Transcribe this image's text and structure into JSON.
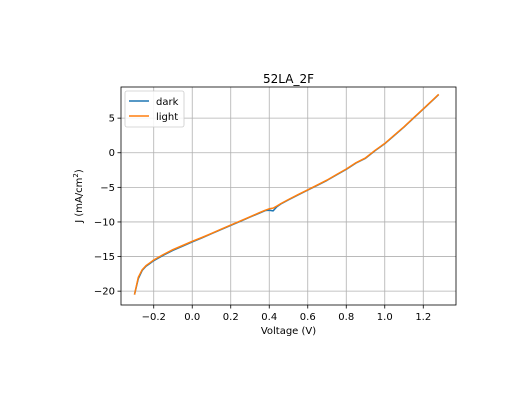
{
  "chart_data": {
    "type": "line",
    "title": "52LA_2F",
    "xlabel": "Voltage (V)",
    "ylabel_main": "J (mA/cm",
    "ylabel_sup": "2",
    "ylabel_tail": ")",
    "xlim": [
      -0.37,
      1.37
    ],
    "ylim": [
      -22,
      9.5
    ],
    "xticks": [
      {
        "value": -0.2,
        "label": "−0.2"
      },
      {
        "value": 0.0,
        "label": "0.0"
      },
      {
        "value": 0.2,
        "label": "0.2"
      },
      {
        "value": 0.4,
        "label": "0.4"
      },
      {
        "value": 0.6,
        "label": "0.6"
      },
      {
        "value": 0.8,
        "label": "0.8"
      },
      {
        "value": 1.0,
        "label": "1.0"
      },
      {
        "value": 1.2,
        "label": "1.2"
      }
    ],
    "yticks": [
      {
        "value": -20,
        "label": "−20"
      },
      {
        "value": -15,
        "label": "−15"
      },
      {
        "value": -10,
        "label": "−10"
      },
      {
        "value": -5,
        "label": "−5"
      },
      {
        "value": 0,
        "label": "0"
      },
      {
        "value": 5,
        "label": "5"
      }
    ],
    "grid": true,
    "legend_position": "top-left",
    "series": [
      {
        "name": "dark",
        "color": "#1f77b4",
        "x": [
          -0.3,
          -0.28,
          -0.26,
          -0.24,
          -0.22,
          -0.2,
          -0.15,
          -0.1,
          -0.05,
          0.0,
          0.05,
          0.1,
          0.15,
          0.2,
          0.25,
          0.3,
          0.35,
          0.38,
          0.4,
          0.42,
          0.44,
          0.46,
          0.5,
          0.55,
          0.6,
          0.65,
          0.7,
          0.75,
          0.8,
          0.85,
          0.9,
          0.95,
          1.0,
          1.05,
          1.1,
          1.15,
          1.2,
          1.25,
          1.28
        ],
        "y": [
          -20.5,
          -18.2,
          -17.0,
          -16.4,
          -16.0,
          -15.6,
          -14.8,
          -14.1,
          -13.5,
          -12.9,
          -12.3,
          -11.7,
          -11.1,
          -10.5,
          -9.9,
          -9.3,
          -8.7,
          -8.35,
          -8.3,
          -8.4,
          -7.8,
          -7.4,
          -6.8,
          -6.1,
          -5.4,
          -4.7,
          -4.0,
          -3.2,
          -2.4,
          -1.5,
          -0.8,
          0.3,
          1.3,
          2.5,
          3.7,
          5.0,
          6.3,
          7.6,
          8.4
        ]
      },
      {
        "name": "light",
        "color": "#ff7f0e",
        "x": [
          -0.3,
          -0.28,
          -0.26,
          -0.24,
          -0.22,
          -0.2,
          -0.15,
          -0.1,
          -0.05,
          0.0,
          0.05,
          0.1,
          0.15,
          0.2,
          0.25,
          0.3,
          0.35,
          0.38,
          0.4,
          0.42,
          0.44,
          0.46,
          0.5,
          0.55,
          0.6,
          0.65,
          0.7,
          0.75,
          0.8,
          0.85,
          0.9,
          0.95,
          1.0,
          1.05,
          1.1,
          1.15,
          1.2,
          1.25,
          1.28
        ],
        "y": [
          -20.5,
          -18.0,
          -16.9,
          -16.3,
          -15.9,
          -15.5,
          -14.7,
          -14.0,
          -13.4,
          -12.8,
          -12.25,
          -11.65,
          -11.05,
          -10.45,
          -9.85,
          -9.25,
          -8.65,
          -8.3,
          -8.1,
          -8.0,
          -7.7,
          -7.35,
          -6.75,
          -6.05,
          -5.35,
          -4.65,
          -3.95,
          -3.15,
          -2.35,
          -1.45,
          -0.75,
          0.35,
          1.35,
          2.55,
          3.75,
          5.05,
          6.35,
          7.65,
          8.45
        ]
      }
    ]
  }
}
